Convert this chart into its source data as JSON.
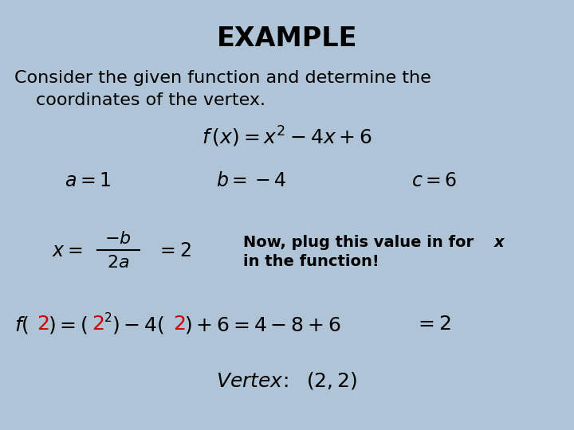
{
  "background_color": "#b0c4d8",
  "title": "EXAMPLE",
  "title_fontsize": 24,
  "title_fontweight": "bold",
  "title_color": "#000000",
  "body_text_line1": "Consider the given function and determine the",
  "body_text_line2": "coordinates of the vertex.",
  "body_fontsize": 16,
  "body_color": "#000000",
  "math_color": "#000000",
  "red_color": "#cc0000",
  "annotation_fontsize": 14
}
